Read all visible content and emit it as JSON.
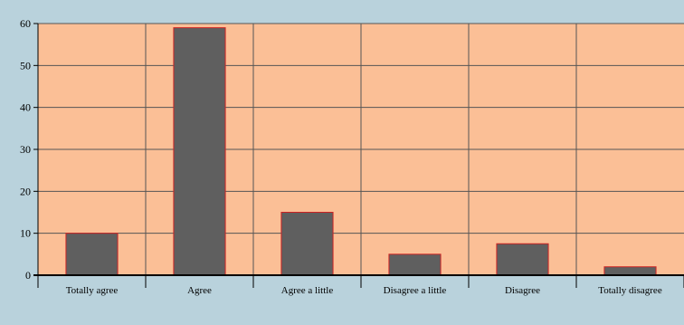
{
  "chart_data": {
    "type": "bar",
    "title": "",
    "xlabel": "",
    "ylabel": "",
    "categories": [
      "Totally agree",
      "Agree",
      "Agree a little",
      "Disagree a little",
      "Disagree",
      "Totally disagree"
    ],
    "values": [
      10,
      59,
      15,
      5,
      7.5,
      2
    ],
    "ylim": [
      0,
      60
    ],
    "yticks": [
      0,
      10,
      20,
      30,
      40,
      50,
      60
    ],
    "grid": true,
    "legend": "none",
    "colors": {
      "background": "#b9d2dc",
      "plot_area": "#fbbf96",
      "bar_fill": "#5f5f5f",
      "bar_stroke": "#cc2222",
      "gridline": "#555555"
    }
  }
}
